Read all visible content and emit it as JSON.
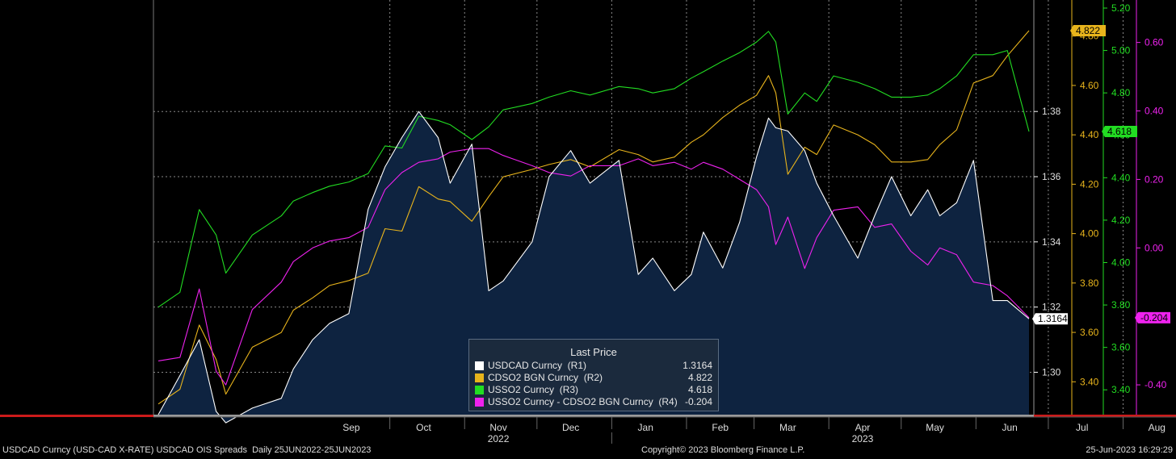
{
  "chart_data": {
    "type": "line",
    "x_months": [
      "Sep",
      "Oct",
      "Nov",
      "Dec",
      "Jan",
      "Feb",
      "Mar",
      "Apr",
      "May",
      "Jun",
      "Jul",
      "Aug"
    ],
    "x_years": [
      "2022",
      "2023"
    ],
    "date_range": [
      "2022-06-25",
      "2023-06-25"
    ],
    "legend_title": "Last Price",
    "axes": [
      {
        "id": "R1",
        "ticks": [
          "1.30",
          "1.32",
          "1.34",
          "1.36",
          "1.38"
        ],
        "ylim": [
          1.287,
          1.4142
        ],
        "color": "#ffffff"
      },
      {
        "id": "R2",
        "ticks": [
          "3.40",
          "3.60",
          "3.80",
          "4.00",
          "4.20",
          "4.40",
          "4.60",
          "4.80"
        ],
        "ylim": [
          3.267,
          4.946
        ],
        "color": "#e8b41c"
      },
      {
        "id": "R3",
        "ticks": [
          "3.40",
          "3.60",
          "3.80",
          "4.00",
          "4.20",
          "4.40",
          "4.60",
          "4.80",
          "5.00",
          "5.20"
        ],
        "ylim": [
          3.283,
          5.238
        ],
        "color": "#22dd22"
      },
      {
        "id": "R4",
        "ticks": [
          "-0.40",
          "0.00",
          "0.20",
          "0.40",
          "0.60"
        ],
        "ylim": [
          -0.487,
          0.724
        ],
        "color": "#ee22ee"
      }
    ],
    "series": [
      {
        "name": "USDCAD Curncy  (R1)",
        "last": "1.3164",
        "color": "#ffffff",
        "axis": 0,
        "area": true,
        "points": [
          [
            "2022-06-27",
            1.287
          ],
          [
            "2022-07-06",
            1.299
          ],
          [
            "2022-07-14",
            1.31
          ],
          [
            "2022-07-21",
            1.288
          ],
          [
            "2022-07-25",
            1.2845
          ],
          [
            "2022-08-05",
            1.289
          ],
          [
            "2022-08-17",
            1.292
          ],
          [
            "2022-08-22",
            1.301
          ],
          [
            "2022-08-30",
            1.31
          ],
          [
            "2022-09-06",
            1.315
          ],
          [
            "2022-09-14",
            1.318
          ],
          [
            "2022-09-22",
            1.35
          ],
          [
            "2022-09-29",
            1.363
          ],
          [
            "2022-10-06",
            1.372
          ],
          [
            "2022-10-13",
            1.38
          ],
          [
            "2022-10-21",
            1.372
          ],
          [
            "2022-10-26",
            1.358
          ],
          [
            "2022-11-04",
            1.37
          ],
          [
            "2022-11-11",
            1.325
          ],
          [
            "2022-11-17",
            1.328
          ],
          [
            "2022-11-29",
            1.34
          ],
          [
            "2022-12-06",
            1.36
          ],
          [
            "2022-12-15",
            1.368
          ],
          [
            "2022-12-23",
            1.358
          ],
          [
            "2023-01-04",
            1.365
          ],
          [
            "2023-01-12",
            1.33
          ],
          [
            "2023-01-18",
            1.335
          ],
          [
            "2023-01-27",
            1.325
          ],
          [
            "2023-02-03",
            1.33
          ],
          [
            "2023-02-08",
            1.343
          ],
          [
            "2023-02-16",
            1.332
          ],
          [
            "2023-02-23",
            1.346
          ],
          [
            "2023-03-02",
            1.366
          ],
          [
            "2023-03-07",
            1.378
          ],
          [
            "2023-03-10",
            1.375
          ],
          [
            "2023-03-15",
            1.374
          ],
          [
            "2023-03-22",
            1.368
          ],
          [
            "2023-03-27",
            1.358
          ],
          [
            "2023-04-03",
            1.348
          ],
          [
            "2023-04-13",
            1.335
          ],
          [
            "2023-04-20",
            1.348
          ],
          [
            "2023-04-27",
            1.36
          ],
          [
            "2023-05-05",
            1.348
          ],
          [
            "2023-05-12",
            1.356
          ],
          [
            "2023-05-17",
            1.348
          ],
          [
            "2023-05-24",
            1.352
          ],
          [
            "2023-05-31",
            1.365
          ],
          [
            "2023-06-08",
            1.322
          ],
          [
            "2023-06-14",
            1.322
          ],
          [
            "2023-06-23",
            1.3164
          ]
        ]
      },
      {
        "name": "CDSO2 BGN Curncy  (R2)",
        "last": "4.822",
        "color": "#e8b41c",
        "axis": 1,
        "area": false,
        "points": [
          [
            "2022-06-27",
            3.31
          ],
          [
            "2022-07-06",
            3.37
          ],
          [
            "2022-07-14",
            3.63
          ],
          [
            "2022-07-21",
            3.49
          ],
          [
            "2022-07-25",
            3.35
          ],
          [
            "2022-08-05",
            3.54
          ],
          [
            "2022-08-17",
            3.6
          ],
          [
            "2022-08-22",
            3.69
          ],
          [
            "2022-08-30",
            3.74
          ],
          [
            "2022-09-06",
            3.79
          ],
          [
            "2022-09-14",
            3.81
          ],
          [
            "2022-09-22",
            3.84
          ],
          [
            "2022-09-29",
            4.02
          ],
          [
            "2022-10-06",
            4.01
          ],
          [
            "2022-10-13",
            4.19
          ],
          [
            "2022-10-21",
            4.14
          ],
          [
            "2022-10-26",
            4.13
          ],
          [
            "2022-11-04",
            4.05
          ],
          [
            "2022-11-11",
            4.15
          ],
          [
            "2022-11-17",
            4.23
          ],
          [
            "2022-11-29",
            4.26
          ],
          [
            "2022-12-06",
            4.28
          ],
          [
            "2022-12-15",
            4.3
          ],
          [
            "2022-12-23",
            4.27
          ],
          [
            "2023-01-04",
            4.34
          ],
          [
            "2023-01-12",
            4.32
          ],
          [
            "2023-01-18",
            4.29
          ],
          [
            "2023-01-27",
            4.31
          ],
          [
            "2023-02-03",
            4.37
          ],
          [
            "2023-02-08",
            4.4
          ],
          [
            "2023-02-16",
            4.47
          ],
          [
            "2023-02-23",
            4.52
          ],
          [
            "2023-03-02",
            4.56
          ],
          [
            "2023-03-07",
            4.64
          ],
          [
            "2023-03-10",
            4.57
          ],
          [
            "2023-03-15",
            4.24
          ],
          [
            "2023-03-22",
            4.35
          ],
          [
            "2023-03-27",
            4.32
          ],
          [
            "2023-04-03",
            4.44
          ],
          [
            "2023-04-13",
            4.4
          ],
          [
            "2023-04-20",
            4.36
          ],
          [
            "2023-04-27",
            4.29
          ],
          [
            "2023-05-05",
            4.29
          ],
          [
            "2023-05-12",
            4.3
          ],
          [
            "2023-05-17",
            4.36
          ],
          [
            "2023-05-24",
            4.42
          ],
          [
            "2023-05-31",
            4.61
          ],
          [
            "2023-06-08",
            4.64
          ],
          [
            "2023-06-14",
            4.72
          ],
          [
            "2023-06-23",
            4.822
          ]
        ]
      },
      {
        "name": "USSO2 Curncy  (R3)",
        "last": "4.618",
        "color": "#22dd22",
        "axis": 2,
        "area": false,
        "points": [
          [
            "2022-06-27",
            3.79
          ],
          [
            "2022-07-06",
            3.86
          ],
          [
            "2022-07-14",
            4.25
          ],
          [
            "2022-07-21",
            4.13
          ],
          [
            "2022-07-25",
            3.95
          ],
          [
            "2022-08-05",
            4.13
          ],
          [
            "2022-08-17",
            4.22
          ],
          [
            "2022-08-22",
            4.29
          ],
          [
            "2022-08-30",
            4.33
          ],
          [
            "2022-09-06",
            4.36
          ],
          [
            "2022-09-14",
            4.38
          ],
          [
            "2022-09-22",
            4.42
          ],
          [
            "2022-09-29",
            4.55
          ],
          [
            "2022-10-06",
            4.54
          ],
          [
            "2022-10-13",
            4.69
          ],
          [
            "2022-10-21",
            4.67
          ],
          [
            "2022-10-26",
            4.65
          ],
          [
            "2022-11-04",
            4.58
          ],
          [
            "2022-11-11",
            4.64
          ],
          [
            "2022-11-17",
            4.72
          ],
          [
            "2022-11-29",
            4.75
          ],
          [
            "2022-12-06",
            4.78
          ],
          [
            "2022-12-15",
            4.81
          ],
          [
            "2022-12-23",
            4.79
          ],
          [
            "2023-01-04",
            4.83
          ],
          [
            "2023-01-12",
            4.82
          ],
          [
            "2023-01-18",
            4.8
          ],
          [
            "2023-01-27",
            4.82
          ],
          [
            "2023-02-03",
            4.87
          ],
          [
            "2023-02-08",
            4.9
          ],
          [
            "2023-02-16",
            4.95
          ],
          [
            "2023-02-23",
            4.99
          ],
          [
            "2023-03-02",
            5.04
          ],
          [
            "2023-03-07",
            5.09
          ],
          [
            "2023-03-10",
            5.04
          ],
          [
            "2023-03-15",
            4.7
          ],
          [
            "2023-03-22",
            4.8
          ],
          [
            "2023-03-27",
            4.76
          ],
          [
            "2023-04-03",
            4.88
          ],
          [
            "2023-04-13",
            4.85
          ],
          [
            "2023-04-20",
            4.82
          ],
          [
            "2023-04-27",
            4.78
          ],
          [
            "2023-05-05",
            4.78
          ],
          [
            "2023-05-12",
            4.79
          ],
          [
            "2023-05-17",
            4.82
          ],
          [
            "2023-05-24",
            4.88
          ],
          [
            "2023-05-31",
            4.98
          ],
          [
            "2023-06-08",
            4.98
          ],
          [
            "2023-06-14",
            5.0
          ],
          [
            "2023-06-23",
            4.618
          ]
        ]
      },
      {
        "name": "USSO2 Curncy - CDSO2 BGN Curncy  (R4)",
        "last": "-0.204",
        "color": "#ee22ee",
        "axis": 3,
        "area": false,
        "points": [
          [
            "2022-06-27",
            -0.33
          ],
          [
            "2022-07-06",
            -0.32
          ],
          [
            "2022-07-14",
            -0.12
          ],
          [
            "2022-07-21",
            -0.36
          ],
          [
            "2022-07-25",
            -0.4
          ],
          [
            "2022-08-05",
            -0.18
          ],
          [
            "2022-08-17",
            -0.1
          ],
          [
            "2022-08-22",
            -0.04
          ],
          [
            "2022-08-30",
            0.0
          ],
          [
            "2022-09-06",
            0.02
          ],
          [
            "2022-09-14",
            0.03
          ],
          [
            "2022-09-22",
            0.06
          ],
          [
            "2022-09-29",
            0.17
          ],
          [
            "2022-10-06",
            0.22
          ],
          [
            "2022-10-13",
            0.25
          ],
          [
            "2022-10-21",
            0.26
          ],
          [
            "2022-10-26",
            0.28
          ],
          [
            "2022-11-04",
            0.29
          ],
          [
            "2022-11-11",
            0.29
          ],
          [
            "2022-11-17",
            0.27
          ],
          [
            "2022-11-29",
            0.24
          ],
          [
            "2022-12-06",
            0.22
          ],
          [
            "2022-12-15",
            0.21
          ],
          [
            "2022-12-23",
            0.24
          ],
          [
            "2023-01-04",
            0.24
          ],
          [
            "2023-01-12",
            0.26
          ],
          [
            "2023-01-18",
            0.24
          ],
          [
            "2023-01-27",
            0.25
          ],
          [
            "2023-02-03",
            0.23
          ],
          [
            "2023-02-08",
            0.25
          ],
          [
            "2023-02-16",
            0.23
          ],
          [
            "2023-02-23",
            0.2
          ],
          [
            "2023-03-02",
            0.17
          ],
          [
            "2023-03-07",
            0.12
          ],
          [
            "2023-03-10",
            0.01
          ],
          [
            "2023-03-15",
            0.09
          ],
          [
            "2023-03-22",
            -0.06
          ],
          [
            "2023-03-27",
            0.03
          ],
          [
            "2023-04-03",
            0.11
          ],
          [
            "2023-04-13",
            0.12
          ],
          [
            "2023-04-20",
            0.06
          ],
          [
            "2023-04-27",
            0.07
          ],
          [
            "2023-05-05",
            -0.01
          ],
          [
            "2023-05-12",
            -0.05
          ],
          [
            "2023-05-17",
            0.0
          ],
          [
            "2023-05-24",
            -0.02
          ],
          [
            "2023-05-31",
            -0.1
          ],
          [
            "2023-06-08",
            -0.11
          ],
          [
            "2023-06-14",
            -0.14
          ],
          [
            "2023-06-23",
            -0.204
          ]
        ]
      }
    ]
  },
  "footer": {
    "left": "USDCAD Curncy (USD-CAD X-RATE) USDCAD OIS Spreads  Daily 25JUN2022-25JUN2023",
    "center": "Copyright© 2023 Bloomberg Finance L.P.",
    "right": "25-Jun-2023 16:29:29"
  }
}
